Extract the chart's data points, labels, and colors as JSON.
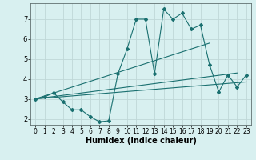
{
  "title": "",
  "xlabel": "Humidex (Indice chaleur)",
  "bg_color": "#d8f0f0",
  "grid_color": "#c0d8d8",
  "line_color": "#1a7070",
  "xlim": [
    -0.5,
    23.5
  ],
  "ylim": [
    1.7,
    7.8
  ],
  "yticks": [
    2,
    3,
    4,
    5,
    6,
    7
  ],
  "xticks": [
    0,
    1,
    2,
    3,
    4,
    5,
    6,
    7,
    8,
    9,
    10,
    11,
    12,
    13,
    14,
    15,
    16,
    17,
    18,
    19,
    20,
    21,
    22,
    23
  ],
  "series": {
    "main": {
      "x": [
        0,
        1,
        2,
        3,
        4,
        5,
        6,
        7,
        8,
        9,
        10,
        11,
        12,
        13,
        14,
        15,
        16,
        17,
        18,
        19,
        20,
        21,
        22,
        23
      ],
      "y": [
        3.0,
        3.1,
        3.3,
        2.85,
        2.45,
        2.45,
        2.1,
        1.85,
        1.9,
        4.25,
        5.5,
        7.0,
        7.0,
        4.25,
        7.5,
        7.0,
        7.3,
        6.5,
        6.7,
        4.7,
        3.35,
        4.2,
        3.6,
        4.2
      ]
    },
    "upper_line": {
      "x": [
        0,
        19
      ],
      "y": [
        3.0,
        5.8
      ]
    },
    "mid_line": {
      "x": [
        0,
        22
      ],
      "y": [
        3.0,
        4.3
      ]
    },
    "lower_line": {
      "x": [
        0,
        23
      ],
      "y": [
        3.0,
        3.85
      ]
    }
  }
}
